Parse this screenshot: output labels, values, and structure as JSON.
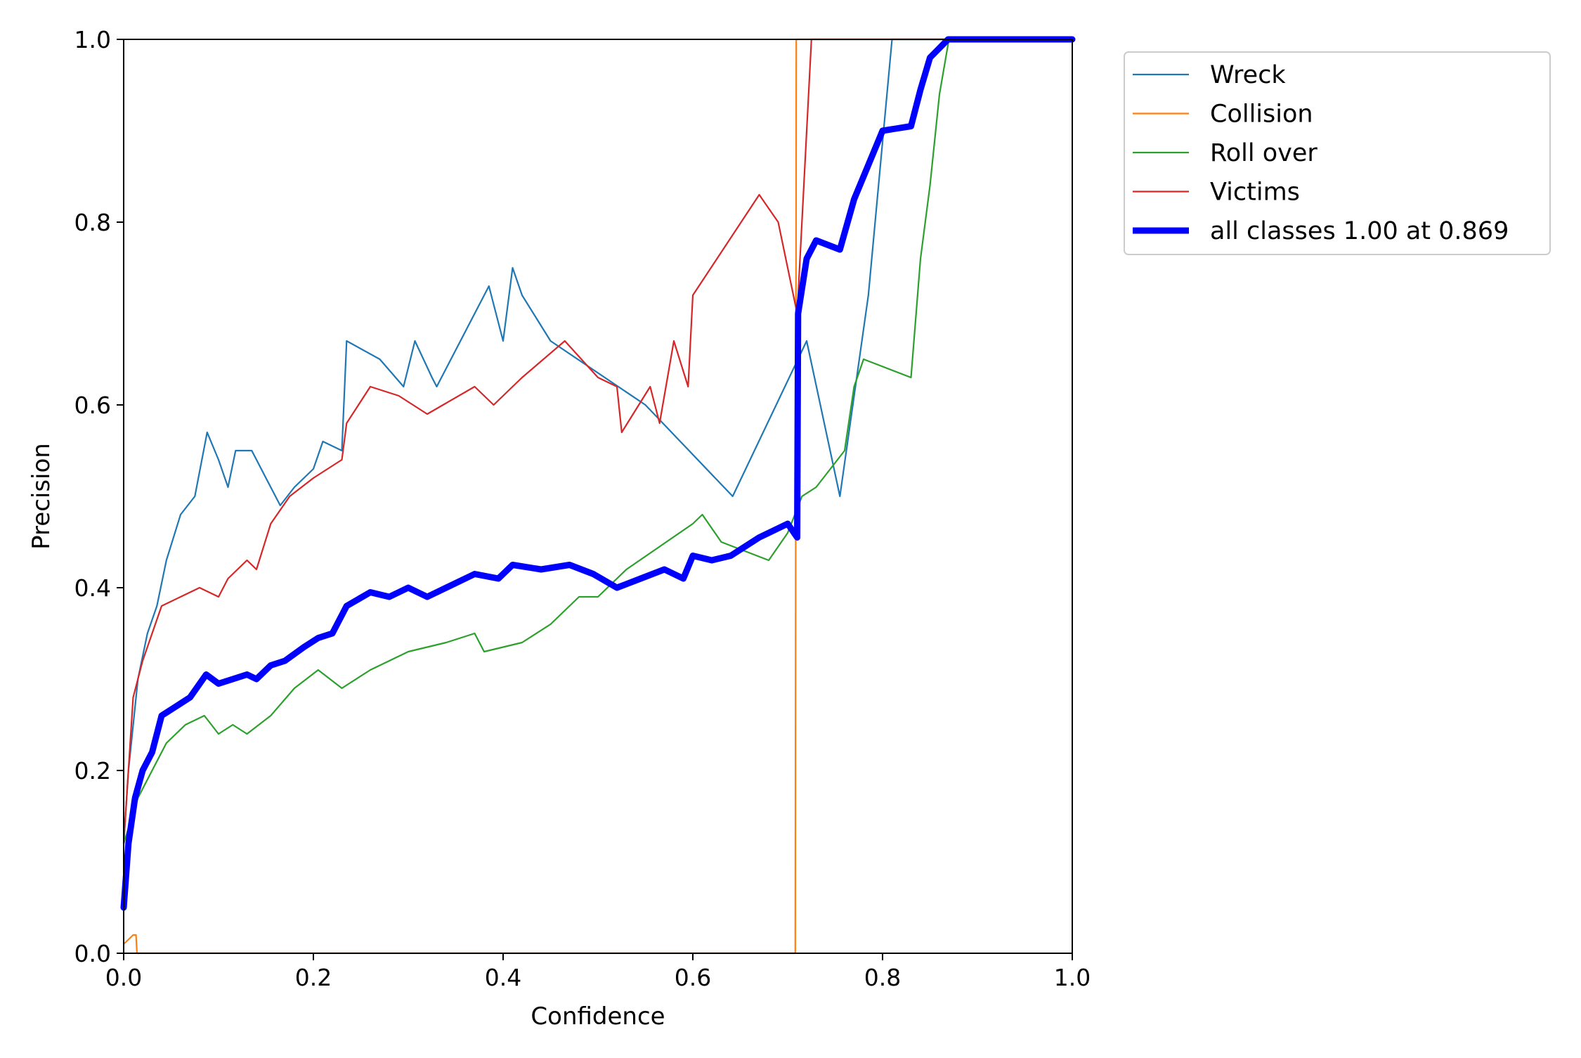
{
  "chart_data": {
    "type": "line",
    "xlabel": "Confidence",
    "ylabel": "Precision",
    "xlim": [
      0.0,
      1.0
    ],
    "ylim": [
      0.0,
      1.0
    ],
    "x_ticks": [
      "0.0",
      "0.2",
      "0.4",
      "0.6",
      "0.8",
      "1.0"
    ],
    "y_ticks": [
      "0.0",
      "0.2",
      "0.4",
      "0.6",
      "0.8",
      "1.0"
    ],
    "grid": false,
    "legend_position": "outside top-right",
    "series": [
      {
        "name": "Wreck",
        "color": "#1f77b4",
        "points": [
          [
            0.0,
            0.12
          ],
          [
            0.005,
            0.2
          ],
          [
            0.015,
            0.3
          ],
          [
            0.025,
            0.35
          ],
          [
            0.035,
            0.38
          ],
          [
            0.045,
            0.43
          ],
          [
            0.06,
            0.48
          ],
          [
            0.075,
            0.5
          ],
          [
            0.088,
            0.57
          ],
          [
            0.1,
            0.54
          ],
          [
            0.11,
            0.51
          ],
          [
            0.118,
            0.55
          ],
          [
            0.135,
            0.55
          ],
          [
            0.15,
            0.52
          ],
          [
            0.165,
            0.49
          ],
          [
            0.18,
            0.51
          ],
          [
            0.2,
            0.53
          ],
          [
            0.21,
            0.56
          ],
          [
            0.23,
            0.55
          ],
          [
            0.235,
            0.67
          ],
          [
            0.27,
            0.65
          ],
          [
            0.295,
            0.62
          ],
          [
            0.307,
            0.67
          ],
          [
            0.325,
            0.63
          ],
          [
            0.33,
            0.62
          ],
          [
            0.385,
            0.73
          ],
          [
            0.4,
            0.67
          ],
          [
            0.41,
            0.75
          ],
          [
            0.42,
            0.72
          ],
          [
            0.45,
            0.67
          ],
          [
            0.55,
            0.6
          ],
          [
            0.642,
            0.5
          ],
          [
            0.72,
            0.67
          ],
          [
            0.755,
            0.5
          ],
          [
            0.785,
            0.72
          ],
          [
            0.81,
            1.0
          ],
          [
            1.0,
            1.0
          ]
        ]
      },
      {
        "name": "Collision",
        "color": "#ff7f0e",
        "points": [
          [
            0.0,
            0.01
          ],
          [
            0.005,
            0.015
          ],
          [
            0.01,
            0.02
          ],
          [
            0.013,
            0.02
          ],
          [
            0.014,
            0.0
          ],
          [
            0.708,
            0.0
          ],
          [
            0.709,
            1.0
          ],
          [
            1.0,
            1.0
          ]
        ]
      },
      {
        "name": "Roll over",
        "color": "#2ca02c",
        "points": [
          [
            0.0,
            0.12
          ],
          [
            0.015,
            0.17
          ],
          [
            0.03,
            0.2
          ],
          [
            0.045,
            0.23
          ],
          [
            0.065,
            0.25
          ],
          [
            0.085,
            0.26
          ],
          [
            0.1,
            0.24
          ],
          [
            0.115,
            0.25
          ],
          [
            0.13,
            0.24
          ],
          [
            0.155,
            0.26
          ],
          [
            0.18,
            0.29
          ],
          [
            0.205,
            0.31
          ],
          [
            0.23,
            0.29
          ],
          [
            0.26,
            0.31
          ],
          [
            0.28,
            0.32
          ],
          [
            0.3,
            0.33
          ],
          [
            0.34,
            0.34
          ],
          [
            0.37,
            0.35
          ],
          [
            0.38,
            0.33
          ],
          [
            0.42,
            0.34
          ],
          [
            0.45,
            0.36
          ],
          [
            0.48,
            0.39
          ],
          [
            0.5,
            0.39
          ],
          [
            0.53,
            0.42
          ],
          [
            0.6,
            0.47
          ],
          [
            0.61,
            0.48
          ],
          [
            0.63,
            0.45
          ],
          [
            0.68,
            0.43
          ],
          [
            0.7,
            0.46
          ],
          [
            0.715,
            0.5
          ],
          [
            0.73,
            0.51
          ],
          [
            0.76,
            0.55
          ],
          [
            0.77,
            0.62
          ],
          [
            0.78,
            0.65
          ],
          [
            0.83,
            0.63
          ],
          [
            0.84,
            0.76
          ],
          [
            0.85,
            0.84
          ],
          [
            0.86,
            0.94
          ],
          [
            0.87,
            1.0
          ],
          [
            1.0,
            1.0
          ]
        ]
      },
      {
        "name": "Victims",
        "color": "#d62728",
        "points": [
          [
            0.0,
            0.12
          ],
          [
            0.01,
            0.28
          ],
          [
            0.02,
            0.32
          ],
          [
            0.03,
            0.35
          ],
          [
            0.04,
            0.38
          ],
          [
            0.06,
            0.39
          ],
          [
            0.08,
            0.4
          ],
          [
            0.1,
            0.39
          ],
          [
            0.11,
            0.41
          ],
          [
            0.13,
            0.43
          ],
          [
            0.14,
            0.42
          ],
          [
            0.155,
            0.47
          ],
          [
            0.175,
            0.5
          ],
          [
            0.2,
            0.52
          ],
          [
            0.23,
            0.54
          ],
          [
            0.235,
            0.58
          ],
          [
            0.26,
            0.62
          ],
          [
            0.29,
            0.61
          ],
          [
            0.32,
            0.59
          ],
          [
            0.37,
            0.62
          ],
          [
            0.39,
            0.6
          ],
          [
            0.42,
            0.63
          ],
          [
            0.465,
            0.67
          ],
          [
            0.5,
            0.63
          ],
          [
            0.52,
            0.62
          ],
          [
            0.525,
            0.57
          ],
          [
            0.555,
            0.62
          ],
          [
            0.565,
            0.58
          ],
          [
            0.58,
            0.67
          ],
          [
            0.595,
            0.62
          ],
          [
            0.6,
            0.72
          ],
          [
            0.67,
            0.83
          ],
          [
            0.69,
            0.8
          ],
          [
            0.71,
            0.7
          ],
          [
            0.725,
            1.0
          ],
          [
            1.0,
            1.0
          ]
        ]
      },
      {
        "name": "all classes 1.00 at 0.869",
        "color": "#0000ff",
        "bold": true,
        "points": [
          [
            0.0,
            0.05
          ],
          [
            0.005,
            0.12
          ],
          [
            0.012,
            0.17
          ],
          [
            0.02,
            0.2
          ],
          [
            0.03,
            0.22
          ],
          [
            0.04,
            0.26
          ],
          [
            0.055,
            0.27
          ],
          [
            0.07,
            0.28
          ],
          [
            0.087,
            0.305
          ],
          [
            0.1,
            0.295
          ],
          [
            0.115,
            0.3
          ],
          [
            0.13,
            0.305
          ],
          [
            0.14,
            0.3
          ],
          [
            0.155,
            0.315
          ],
          [
            0.17,
            0.32
          ],
          [
            0.19,
            0.335
          ],
          [
            0.205,
            0.345
          ],
          [
            0.22,
            0.35
          ],
          [
            0.235,
            0.38
          ],
          [
            0.26,
            0.395
          ],
          [
            0.28,
            0.39
          ],
          [
            0.3,
            0.4
          ],
          [
            0.32,
            0.39
          ],
          [
            0.37,
            0.415
          ],
          [
            0.395,
            0.41
          ],
          [
            0.41,
            0.425
          ],
          [
            0.44,
            0.42
          ],
          [
            0.47,
            0.425
          ],
          [
            0.495,
            0.415
          ],
          [
            0.52,
            0.4
          ],
          [
            0.545,
            0.41
          ],
          [
            0.57,
            0.42
          ],
          [
            0.59,
            0.41
          ],
          [
            0.6,
            0.435
          ],
          [
            0.62,
            0.43
          ],
          [
            0.64,
            0.435
          ],
          [
            0.67,
            0.455
          ],
          [
            0.69,
            0.465
          ],
          [
            0.7,
            0.47
          ],
          [
            0.71,
            0.455
          ],
          [
            0.711,
            0.7
          ],
          [
            0.72,
            0.76
          ],
          [
            0.73,
            0.78
          ],
          [
            0.755,
            0.77
          ],
          [
            0.77,
            0.825
          ],
          [
            0.8,
            0.9
          ],
          [
            0.83,
            0.905
          ],
          [
            0.84,
            0.945
          ],
          [
            0.85,
            0.98
          ],
          [
            0.869,
            1.0
          ],
          [
            1.0,
            1.0
          ]
        ]
      }
    ]
  }
}
